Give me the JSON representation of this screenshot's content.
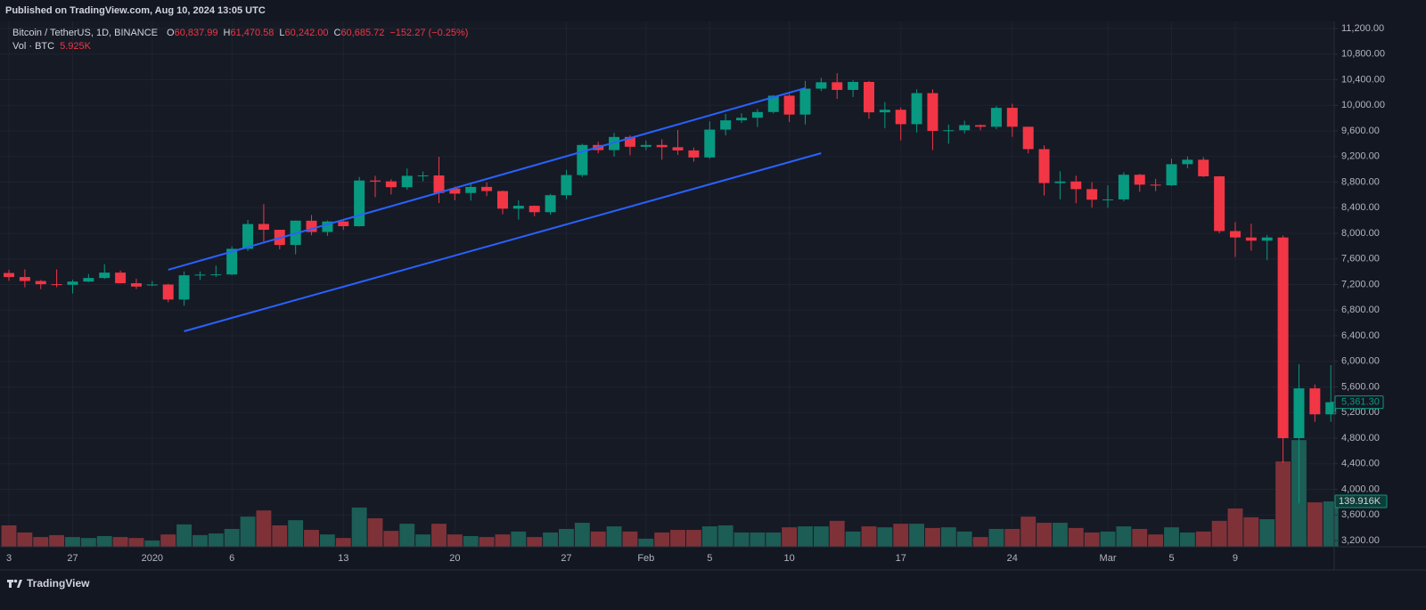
{
  "chart_data": {
    "type": "candlestick",
    "publisher": "Published on TradingView.com, Aug 10, 2024 13:05 UTC",
    "title": "Bitcoin / TetherUS, 1D, BINANCE",
    "legend": [
      "O",
      "60,837.99",
      "H",
      "61,470.58",
      "L",
      "60,242.00",
      "C",
      "60,685.72",
      "−152.27 (−0.25%)"
    ],
    "volume_title": "Vol · BTC",
    "volume_now": "5.925K",
    "footer": "TradingView",
    "categories": [
      "3",
      null,
      null,
      null,
      "27",
      null,
      null,
      null,
      null,
      "2020",
      null,
      null,
      null,
      null,
      "6",
      null,
      null,
      null,
      null,
      null,
      null,
      "13",
      null,
      null,
      null,
      null,
      null,
      null,
      "20",
      null,
      null,
      null,
      null,
      null,
      null,
      "27",
      null,
      null,
      null,
      null,
      "Feb",
      null,
      null,
      null,
      "5",
      null,
      null,
      null,
      null,
      "10",
      null,
      null,
      null,
      null,
      null,
      null,
      "17",
      null,
      null,
      null,
      null,
      null,
      null,
      "24",
      null,
      null,
      null,
      null,
      null,
      "Mar",
      null,
      null,
      null,
      "5",
      null,
      null,
      null,
      "9",
      null,
      null,
      null,
      null,
      null,
      null
    ],
    "open": [
      7380,
      7317,
      7255,
      7205,
      7195,
      7246,
      7302,
      7386,
      7220,
      7195,
      7200,
      6965,
      7345,
      7357,
      7357,
      7758,
      8146,
      8055,
      7818,
      8197,
      8021,
      8185,
      8111,
      8825,
      8812,
      8720,
      8898,
      8904,
      8700,
      8630,
      8725,
      8660,
      8385,
      8430,
      8330,
      8595,
      8910,
      9380,
      9300,
      9505,
      9352,
      9380,
      9345,
      9295,
      9185,
      9620,
      9765,
      9805,
      9895,
      10150,
      9855,
      10260,
      10360,
      10240,
      10365,
      9890,
      9930,
      9705,
      10190,
      9600,
      9610,
      9690,
      9665,
      9960,
      9665,
      9315,
      8785,
      8810,
      8690,
      8525,
      8530,
      8915,
      8760,
      8750,
      9080,
      9150,
      8890,
      8035,
      7935,
      7885,
      7935,
      4800,
      5578,
      5172
    ],
    "high": [
      7430,
      7436,
      7271,
      7435,
      7275,
      7365,
      7518,
      7420,
      7290,
      7255,
      7212,
      7405,
      7404,
      7495,
      7795,
      8208,
      8455,
      8055,
      8199,
      8286,
      8200,
      8197,
      8880,
      8900,
      8846,
      9012,
      8966,
      9195,
      8730,
      8775,
      8795,
      8670,
      8515,
      8435,
      8616,
      8990,
      9400,
      9430,
      9570,
      9530,
      9450,
      9470,
      9615,
      9340,
      9750,
      9865,
      9875,
      9940,
      10160,
      10180,
      10380,
      10430,
      10500,
      10390,
      10380,
      10050,
      9965,
      10250,
      10250,
      9700,
      9760,
      9700,
      9990,
      10025,
      9665,
      9375,
      8970,
      8900,
      8800,
      8750,
      8955,
      8930,
      8850,
      9165,
      9200,
      9190,
      8895,
      8175,
      8150,
      7975,
      7965,
      5955,
      5640,
      5940
    ],
    "low": [
      7260,
      7157,
      7128,
      7157,
      7060,
      7238,
      7288,
      7220,
      7130,
      7175,
      6924,
      6871,
      7272,
      7318,
      7346,
      7723,
      7870,
      7750,
      7672,
      7970,
      7960,
      8055,
      8105,
      8565,
      8607,
      8680,
      8812,
      8473,
      8516,
      8510,
      8580,
      8296,
      8213,
      8266,
      8292,
      8534,
      8880,
      9250,
      9200,
      9220,
      9300,
      9150,
      9225,
      9120,
      9165,
      9530,
      9725,
      9660,
      9873,
      9740,
      9700,
      10222,
      10100,
      10130,
      9790,
      9640,
      9452,
      9575,
      9300,
      9400,
      9560,
      9610,
      9630,
      9507,
      9250,
      8590,
      8530,
      8470,
      8400,
      8400,
      8500,
      8650,
      8660,
      8740,
      9015,
      8880,
      8000,
      7631,
      7730,
      7580,
      4410,
      3782,
      5055,
      5055
    ],
    "close": [
      7317,
      7255,
      7205,
      7195,
      7246,
      7302,
      7386,
      7220,
      7168,
      7200,
      6965,
      7344,
      7355,
      7358,
      7758,
      8145,
      8055,
      7818,
      8198,
      8021,
      8185,
      8111,
      8825,
      8808,
      8720,
      8898,
      8904,
      8630,
      8620,
      8725,
      8660,
      8385,
      8430,
      8330,
      8595,
      8910,
      9380,
      9300,
      9505,
      9352,
      9380,
      9345,
      9295,
      9185,
      9620,
      9765,
      9805,
      9895,
      10150,
      9855,
      10260,
      10360,
      10240,
      10365,
      9890,
      9930,
      9705,
      10190,
      9600,
      9610,
      9690,
      9665,
      9960,
      9665,
      9315,
      8785,
      8810,
      8690,
      8525,
      8530,
      8915,
      8760,
      8750,
      9080,
      9150,
      8890,
      8035,
      7935,
      7885,
      7935,
      4800,
      5578,
      5172,
      5361.3
    ],
    "close_label": "5,361.30",
    "volume": [
      66,
      44,
      30,
      36,
      30,
      27,
      33,
      30,
      27,
      19,
      38,
      69,
      36,
      41,
      55,
      93,
      112,
      66,
      82,
      52,
      38,
      27,
      121,
      88,
      49,
      71,
      38,
      71,
      38,
      33,
      30,
      38,
      47,
      30,
      44,
      55,
      74,
      47,
      63,
      47,
      25,
      44,
      52,
      52,
      63,
      66,
      44,
      44,
      44,
      60,
      63,
      63,
      80,
      47,
      63,
      60,
      71,
      71,
      58,
      60,
      47,
      30,
      55,
      55,
      93,
      74,
      74,
      58,
      44,
      47,
      63,
      55,
      38,
      60,
      44,
      47,
      80,
      118,
      91,
      85,
      263,
      329,
      137,
      139.916
    ],
    "volume_label": "139.916K",
    "volume_ylim": [
      0,
      1620
    ],
    "up_color": "#089981",
    "down_color": "#f23645",
    "up_volume_color": "#1c5d56",
    "down_volume_color": "#7e3238",
    "ylim": [
      3103,
      11311
    ],
    "yticks": [
      {
        "value": 3200,
        "label": "3,200.00"
      },
      {
        "value": 3600,
        "label": "3,600.00"
      },
      {
        "value": 4000,
        "label": "4,000.00"
      },
      {
        "value": 4400,
        "label": "4,400.00"
      },
      {
        "value": 4800,
        "label": "4,800.00"
      },
      {
        "value": 5200,
        "label": "5,200.00"
      },
      {
        "value": 5600,
        "label": "5,600.00"
      },
      {
        "value": 6000,
        "label": "6,000.00"
      },
      {
        "value": 6400,
        "label": "6,400.00"
      },
      {
        "value": 6800,
        "label": "6,800.00"
      },
      {
        "value": 7200,
        "label": "7,200.00"
      },
      {
        "value": 7600,
        "label": "7,600.00"
      },
      {
        "value": 8000,
        "label": "8,000.00"
      },
      {
        "value": 8400,
        "label": "8,400.00"
      },
      {
        "value": 8800,
        "label": "8,800.00"
      },
      {
        "value": 9200,
        "label": "9,200.00"
      },
      {
        "value": 9600,
        "label": "9,600.00"
      },
      {
        "value": 10000,
        "label": "10,000.00"
      },
      {
        "value": 10400,
        "label": "10,400.00"
      },
      {
        "value": 10800,
        "label": "10,800.00"
      },
      {
        "value": 11200,
        "label": "11,200.00"
      }
    ],
    "grid": true,
    "trendlines": [
      {
        "color": "#2962ff",
        "x": [
          10,
          50
        ],
        "y": [
          7430,
          10268
        ]
      },
      {
        "color": "#2962ff",
        "x": [
          11,
          51
        ],
        "y": [
          6470,
          9252
        ]
      }
    ]
  }
}
